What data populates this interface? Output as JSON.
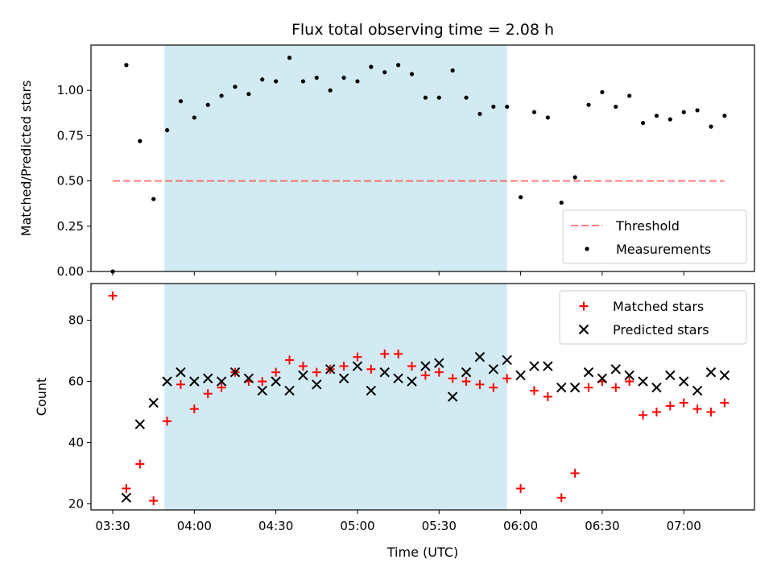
{
  "figure_title": "Flux total observing time = 2.08 h",
  "colors": {
    "shade": "#add8e6",
    "threshold": "#ff0000",
    "measurement": "#000000",
    "matched": "#ff0000",
    "predicted": "#000000"
  },
  "chart_data": [
    {
      "type": "scatter",
      "ylabel": "Matched/Predicted stars",
      "ylim": [
        0,
        1.25
      ],
      "yticks": [
        "0.00",
        "0.25",
        "0.50",
        "0.75",
        "1.00"
      ],
      "xlim": [
        "03:22",
        "07:26"
      ],
      "shaded_span": [
        "03:49",
        "05:55"
      ],
      "threshold": {
        "name": "Threshold",
        "value": 0.5,
        "x_range": [
          "03:30",
          "07:15"
        ]
      },
      "legend_position": "lower-right",
      "series": [
        {
          "name": "Measurements",
          "x": [
            "03:30",
            "03:35",
            "03:40",
            "03:45",
            "03:50",
            "03:55",
            "04:00",
            "04:05",
            "04:10",
            "04:15",
            "04:20",
            "04:25",
            "04:30",
            "04:35",
            "04:40",
            "04:45",
            "04:50",
            "04:55",
            "05:00",
            "05:05",
            "05:10",
            "05:15",
            "05:20",
            "05:25",
            "05:30",
            "05:35",
            "05:40",
            "05:45",
            "05:50",
            "05:55",
            "06:00",
            "06:05",
            "06:10",
            "06:15",
            "06:20",
            "06:25",
            "06:30",
            "06:35",
            "06:40",
            "06:45",
            "06:50",
            "06:55",
            "07:00",
            "07:05",
            "07:10",
            "07:15"
          ],
          "values": [
            0.0,
            1.14,
            0.72,
            0.4,
            0.78,
            0.94,
            0.85,
            0.92,
            0.97,
            1.02,
            0.98,
            1.06,
            1.05,
            1.18,
            1.05,
            1.07,
            1.0,
            1.07,
            1.05,
            1.13,
            1.1,
            1.14,
            1.09,
            0.96,
            0.96,
            1.11,
            0.96,
            0.87,
            0.91,
            0.91,
            0.41,
            0.88,
            0.85,
            0.38,
            0.52,
            0.92,
            0.99,
            0.91,
            0.97,
            0.82,
            0.86,
            0.84,
            0.88,
            0.89,
            0.8,
            0.86
          ]
        }
      ]
    },
    {
      "type": "scatter",
      "xlabel": "Time (UTC)",
      "ylabel": "Count",
      "ylim": [
        18,
        92
      ],
      "yticks": [
        "20",
        "40",
        "60",
        "80"
      ],
      "xlim": [
        "03:22",
        "07:26"
      ],
      "xticks": [
        "03:30",
        "04:00",
        "04:30",
        "05:00",
        "05:30",
        "06:00",
        "06:30",
        "07:00"
      ],
      "shaded_span": [
        "03:49",
        "05:55"
      ],
      "legend_position": "upper-right",
      "series": [
        {
          "name": "Matched stars",
          "marker": "plus",
          "x": [
            "03:30",
            "03:35",
            "03:40",
            "03:45",
            "03:50",
            "03:55",
            "04:00",
            "04:05",
            "04:10",
            "04:15",
            "04:20",
            "04:25",
            "04:30",
            "04:35",
            "04:40",
            "04:45",
            "04:50",
            "04:55",
            "05:00",
            "05:05",
            "05:10",
            "05:15",
            "05:20",
            "05:25",
            "05:30",
            "05:35",
            "05:40",
            "05:45",
            "05:50",
            "05:55",
            "06:00",
            "06:05",
            "06:10",
            "06:15",
            "06:20",
            "06:25",
            "06:30",
            "06:35",
            "06:40",
            "06:45",
            "06:50",
            "06:55",
            "07:00",
            "07:05",
            "07:10",
            "07:15"
          ],
          "values": [
            88,
            25,
            33,
            21,
            47,
            59,
            51,
            56,
            58,
            63,
            60,
            60,
            63,
            67,
            65,
            63,
            64,
            65,
            68,
            64,
            69,
            69,
            65,
            62,
            63,
            61,
            60,
            59,
            58,
            61,
            25,
            57,
            55,
            22,
            30,
            58,
            60,
            58,
            60,
            49,
            50,
            52,
            53,
            51,
            50,
            53
          ]
        },
        {
          "name": "Predicted stars",
          "marker": "x",
          "x": [
            "03:35",
            "03:40",
            "03:45",
            "03:50",
            "03:55",
            "04:00",
            "04:05",
            "04:10",
            "04:15",
            "04:20",
            "04:25",
            "04:30",
            "04:35",
            "04:40",
            "04:45",
            "04:50",
            "04:55",
            "05:00",
            "05:05",
            "05:10",
            "05:15",
            "05:20",
            "05:25",
            "05:30",
            "05:35",
            "05:40",
            "05:45",
            "05:50",
            "05:55",
            "06:00",
            "06:05",
            "06:10",
            "06:15",
            "06:20",
            "06:25",
            "06:30",
            "06:35",
            "06:40",
            "06:45",
            "06:50",
            "06:55",
            "07:00",
            "07:05",
            "07:10",
            "07:15"
          ],
          "values": [
            22,
            46,
            53,
            60,
            63,
            60,
            61,
            60,
            63,
            61,
            57,
            60,
            57,
            62,
            59,
            64,
            61,
            65,
            57,
            63,
            61,
            60,
            65,
            66,
            55,
            63,
            68,
            64,
            67,
            62,
            65,
            65,
            58,
            58,
            63,
            61,
            64,
            62,
            60,
            58,
            62,
            60,
            57,
            63,
            62
          ]
        }
      ]
    }
  ]
}
